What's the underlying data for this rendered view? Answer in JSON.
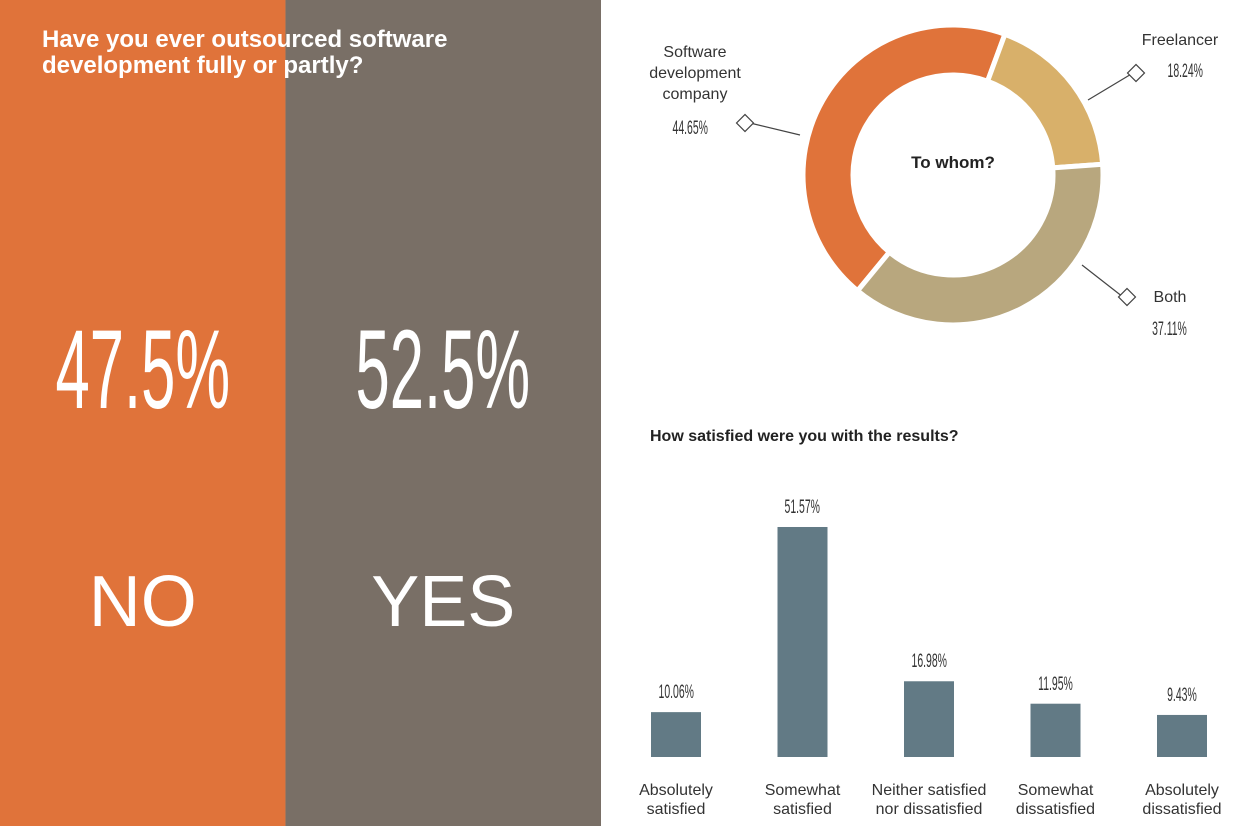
{
  "chart_data": [
    {
      "type": "split",
      "title": "Have you ever outsourced software development fully or partly?",
      "categories": [
        "NO",
        "YES"
      ],
      "values": [
        47.5,
        52.5
      ],
      "value_labels": [
        "47.5%",
        "52.5%"
      ],
      "colors": [
        "#e0733a",
        "#796f66"
      ]
    },
    {
      "type": "donut",
      "title": "To whom?",
      "categories": [
        "Software development company",
        "Freelancer",
        "Both"
      ],
      "values": [
        44.65,
        18.24,
        37.11
      ],
      "value_labels": [
        "44.65%",
        "18.24%",
        "37.11%"
      ],
      "colors": [
        "#e0733a",
        "#d8b06a",
        "#b8a77e"
      ]
    },
    {
      "type": "bar",
      "title": "How satisfied were you with the results?",
      "categories": [
        "Absolutely satisfied",
        "Somewhat satisfied",
        "Neither satisfied nor dissatisfied",
        "Somewhat dissatisfied",
        "Absolutely dissatisfied"
      ],
      "values": [
        10.06,
        51.57,
        16.98,
        11.95,
        9.43
      ],
      "value_labels": [
        "10.06%",
        "51.57%",
        "16.98%",
        "11.95%",
        "9.43%"
      ],
      "color": "#627a85"
    }
  ]
}
